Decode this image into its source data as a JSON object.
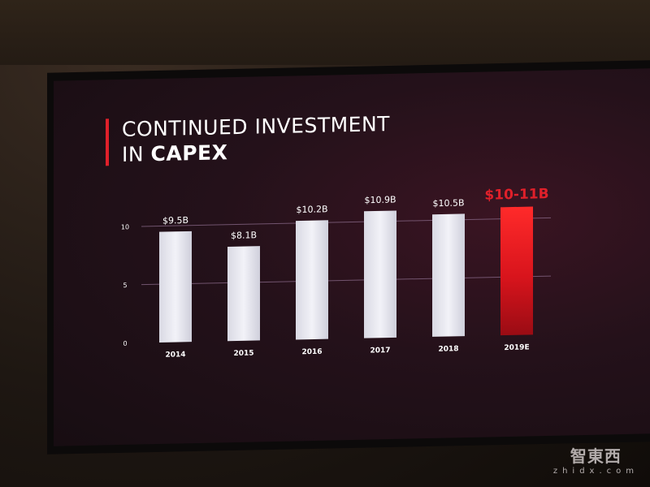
{
  "slide": {
    "title_line1": "CONTINUED INVESTMENT",
    "title_line2_prefix": "IN ",
    "title_line2_bold": "CAPEX"
  },
  "watermark": {
    "logo_text": "智東西",
    "sub_text": "zhidx.com"
  },
  "colors": {
    "accent_red": "#e0202a",
    "bar_white": "#e6e6ee",
    "gridline": "#8a6a8a",
    "axis_text": "#ffffff"
  },
  "chart_data": {
    "type": "bar",
    "title": "",
    "xlabel": "",
    "ylabel": "",
    "categories": [
      "2014",
      "2015",
      "2016",
      "2017",
      "2018",
      "2019E"
    ],
    "values": [
      9.5,
      8.1,
      10.2,
      10.9,
      10.5,
      11.0
    ],
    "value_range_2019E": [
      10,
      11
    ],
    "data_labels": [
      "$9.5B",
      "$8.1B",
      "$10.2B",
      "$10.9B",
      "$10.5B",
      "$10-11B"
    ],
    "highlight_category": "2019E",
    "ylim": [
      0,
      11.5
    ],
    "yticks": [
      0,
      5,
      10
    ],
    "grid": true,
    "legend": "none"
  }
}
